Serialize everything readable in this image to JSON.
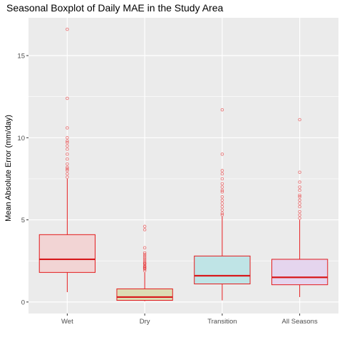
{
  "chart_data": {
    "type": "boxplot",
    "title": "Seasonal Boxplot of Daily MAE in the Study Area",
    "xlabel": "",
    "ylabel": "Mean Absolute Error (mm/day)",
    "ylim": [
      -0.7,
      17.3
    ],
    "yticks": [
      0,
      5,
      10,
      15
    ],
    "grid": true,
    "categories": [
      "Wet",
      "Dry",
      "Transition",
      "All Seasons"
    ],
    "colors": {
      "panel": "#ebebeb",
      "grid": "#ffffff",
      "outline": "#e31a1c",
      "median": "#d7191c",
      "fills": [
        "#f2d4d4",
        "#dcdcb4",
        "#bfe4e6",
        "#e5d5ee"
      ]
    },
    "boxes": [
      {
        "category": "Wet",
        "whisker_low": 0.6,
        "q1": 1.8,
        "median": 2.6,
        "q3": 4.1,
        "whisker_high": 7.5,
        "outliers": [
          7.6,
          7.8,
          8.0,
          8.1,
          8.2,
          8.4,
          8.7,
          9.0,
          9.3,
          9.5,
          9.7,
          9.8,
          10.0,
          10.6,
          12.4,
          16.6
        ]
      },
      {
        "category": "Dry",
        "whisker_low": 0.05,
        "q1": 0.1,
        "median": 0.3,
        "q3": 0.8,
        "whisker_high": 1.8,
        "outliers": [
          1.9,
          2.0,
          2.05,
          2.1,
          2.15,
          2.2,
          2.3,
          2.35,
          2.4,
          2.5,
          2.6,
          2.7,
          2.8,
          2.9,
          3.0,
          3.3,
          4.4,
          4.6
        ]
      },
      {
        "category": "Transition",
        "whisker_low": 0.1,
        "q1": 1.1,
        "median": 1.6,
        "q3": 2.8,
        "whisker_high": 5.2,
        "outliers": [
          5.3,
          5.4,
          5.6,
          5.8,
          6.0,
          6.2,
          6.4,
          6.7,
          6.8,
          7.0,
          7.2,
          7.5,
          7.8,
          8.0,
          9.0,
          11.7
        ]
      },
      {
        "category": "All Seasons",
        "whisker_low": 0.3,
        "q1": 1.05,
        "median": 1.5,
        "q3": 2.6,
        "whisker_high": 5.0,
        "outliers": [
          5.1,
          5.3,
          5.5,
          5.8,
          6.0,
          6.2,
          6.4,
          6.5,
          6.8,
          7.0,
          7.3,
          7.9,
          11.1
        ]
      }
    ]
  }
}
